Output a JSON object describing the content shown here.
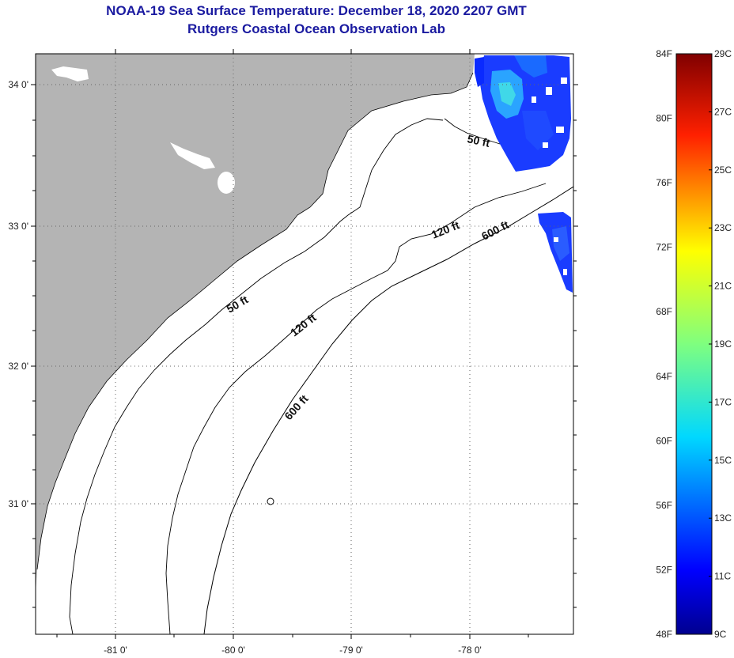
{
  "title": "NOAA-19 Sea Surface Temperature:  December 18, 2020 2207 GMT",
  "subtitle": "Rutgers Coastal Ocean Observation Lab",
  "lat_labels": [
    "34 0'",
    "33 0'",
    "32 0'",
    "31 0'"
  ],
  "lon_labels": [
    "-81 0'",
    "-80 0'",
    "-79 0'",
    "-78 0'"
  ],
  "contour_labels": {
    "c50_north": "50 ft",
    "c50_south": "50 ft",
    "c120_north": "120 ft",
    "c120_south": "120 ft",
    "c600_north": "600 ft",
    "c600_south": "600 ft"
  },
  "colorbar": {
    "f_labels": [
      "84F",
      "80F",
      "76F",
      "72F",
      "68F",
      "64F",
      "60F",
      "56F",
      "52F",
      "48F"
    ],
    "c_labels": [
      "29C",
      "27C",
      "25C",
      "23C",
      "21C",
      "19C",
      "17C",
      "15C",
      "13C",
      "11C",
      "9C"
    ]
  },
  "colors": {
    "land": "#b4b4b4",
    "title": "#1a1aa0"
  }
}
